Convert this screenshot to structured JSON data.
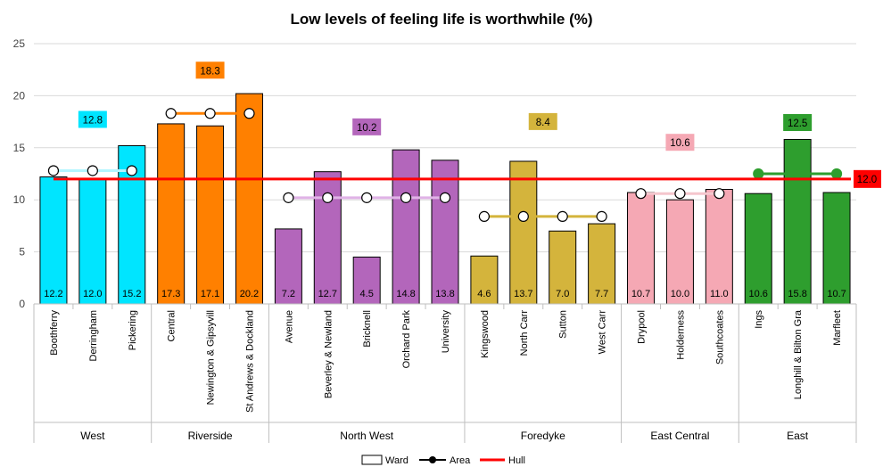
{
  "chart_data": {
    "type": "bar",
    "title": "Low levels of feeling life is worthwhile (%)",
    "ylim": [
      0,
      25
    ],
    "yticks": [
      0,
      5,
      10,
      15,
      20,
      25
    ],
    "grid": true,
    "legend_position": "bottom",
    "hull": {
      "name": "Hull",
      "value": 12.0,
      "label": "12.0",
      "color": "#ff0000"
    },
    "legend": {
      "ward": "Ward",
      "area": "Area",
      "hull": "Hull"
    },
    "groups": [
      {
        "name": "West",
        "color": "#00e5ff",
        "area_value": 12.8,
        "area_label": "12.8",
        "area_line_color": "#b3f5ff",
        "wards": [
          {
            "name": "Boothferry",
            "value": 12.2,
            "label": "12.2"
          },
          {
            "name": "Derringham",
            "value": 12.0,
            "label": "12.0"
          },
          {
            "name": "Pickering",
            "value": 15.2,
            "label": "15.2"
          }
        ]
      },
      {
        "name": "Riverside",
        "color": "#ff8000",
        "area_value": 18.3,
        "area_label": "18.3",
        "area_line_color": "#ff8000",
        "wards": [
          {
            "name": "Central",
            "value": 17.3,
            "label": "17.3"
          },
          {
            "name": "Newington & Gipsyvill",
            "value": 17.1,
            "label": "17.1"
          },
          {
            "name": "St Andrews & Dockland",
            "value": 20.2,
            "label": "20.2"
          }
        ]
      },
      {
        "name": "North West",
        "color": "#b366bb",
        "area_value": 10.2,
        "area_label": "10.2",
        "area_line_color": "#e0b3e6",
        "wards": [
          {
            "name": "Avenue",
            "value": 7.2,
            "label": "7.2"
          },
          {
            "name": "Beverley & Newland",
            "value": 12.7,
            "label": "12.7"
          },
          {
            "name": "Bricknell",
            "value": 4.5,
            "label": "4.5"
          },
          {
            "name": "Orchard Park",
            "value": 14.8,
            "label": "14.8"
          },
          {
            "name": "University",
            "value": 13.8,
            "label": "13.8"
          }
        ]
      },
      {
        "name": "Foredyke",
        "color": "#d4b43c",
        "area_value": 8.4,
        "area_label": "8.4",
        "area_line_color": "#d4b43c",
        "wards": [
          {
            "name": "Kingswood",
            "value": 4.6,
            "label": "4.6"
          },
          {
            "name": "North Carr",
            "value": 13.7,
            "label": "13.7"
          },
          {
            "name": "Sutton",
            "value": 7.0,
            "label": "7.0"
          },
          {
            "name": "West Carr",
            "value": 7.7,
            "label": "7.7"
          }
        ]
      },
      {
        "name": "East Central",
        "color": "#f5a8b4",
        "area_value": 10.6,
        "area_label": "10.6",
        "area_line_color": "#f5c6cd",
        "wards": [
          {
            "name": "Drypool",
            "value": 10.7,
            "label": "10.7"
          },
          {
            "name": "Holderness",
            "value": 10.0,
            "label": "10.0"
          },
          {
            "name": "Southcoates",
            "value": 11.0,
            "label": "11.0"
          }
        ]
      },
      {
        "name": "East",
        "color": "#2e9e2e",
        "area_value": 12.5,
        "area_label": "12.5",
        "area_line_color": "#2e9e2e",
        "wards": [
          {
            "name": "Ings",
            "value": 10.6,
            "label": "10.6"
          },
          {
            "name": "Longhill & Bilton Gra",
            "value": 15.8,
            "label": "15.8"
          },
          {
            "name": "Marfleet",
            "value": 10.7,
            "label": "10.7"
          }
        ]
      }
    ]
  }
}
